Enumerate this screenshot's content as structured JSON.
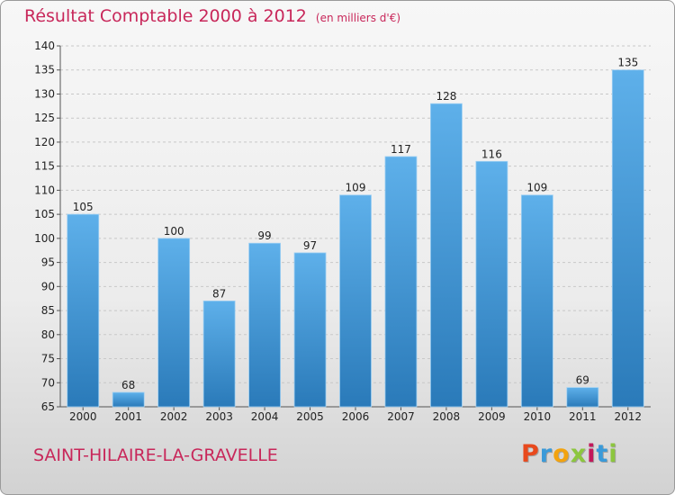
{
  "header": {
    "title": "Résultat Comptable 2000 à 2012",
    "unit": "(en milliers d'€)"
  },
  "footer": {
    "commune": "SAINT-HILAIRE-LA-GRAVELLE",
    "logo": [
      "P",
      "r",
      "o",
      "x",
      "i",
      "t",
      "i"
    ],
    "logo_colors": [
      "#e8491d",
      "#3a9ad9",
      "#f2a30f",
      "#8cc63e",
      "#c2185b",
      "#3a9ad9",
      "#8cc63e"
    ]
  },
  "colors": {
    "title": "#c8275a",
    "bar_top": "#5eb0ea",
    "bar_bottom": "#2a7ab9",
    "grid": "#c8c8c8",
    "axis": "#555555"
  },
  "chart_data": {
    "type": "bar",
    "categories": [
      "2000",
      "2001",
      "2002",
      "2003",
      "2004",
      "2005",
      "2006",
      "2007",
      "2008",
      "2009",
      "2010",
      "2011",
      "2012"
    ],
    "values": [
      105,
      68,
      100,
      87,
      99,
      97,
      109,
      117,
      128,
      116,
      109,
      69,
      135
    ],
    "ylim": [
      65,
      140
    ],
    "yticks": [
      65,
      70,
      75,
      80,
      85,
      90,
      95,
      100,
      105,
      110,
      115,
      120,
      125,
      130,
      135,
      140
    ],
    "grid": "horizontal dashed",
    "legend": "none"
  }
}
